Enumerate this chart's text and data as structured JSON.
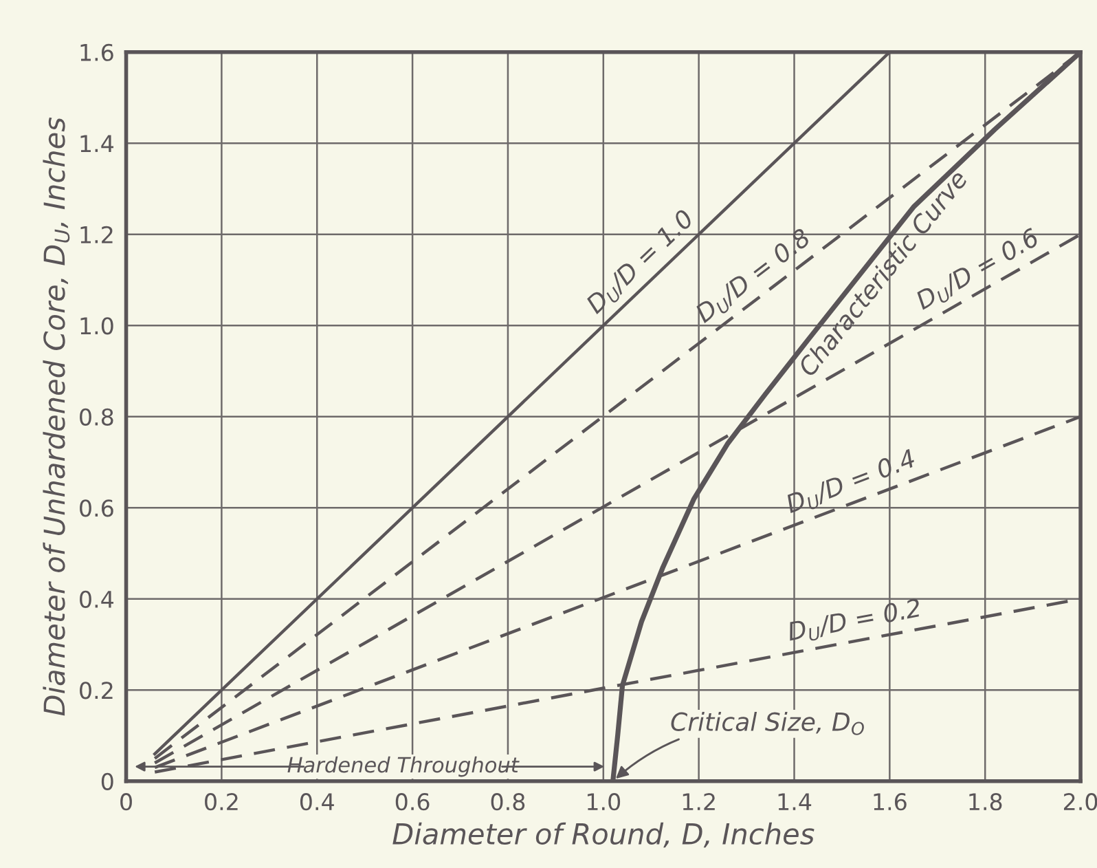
{
  "chart_data": {
    "type": "line",
    "xlabel": "Diameter of Round, D, Inches",
    "ylabel": "Diameter of Unhardened Core, D$_{U}$, Inches",
    "xlim": [
      0,
      2.0
    ],
    "ylim": [
      0,
      1.6
    ],
    "xticks": [
      0,
      0.2,
      0.4,
      0.6,
      0.8,
      {
        "value": 1,
        "label": "1.0"
      },
      1.2,
      1.4,
      1.6,
      1.8,
      {
        "value": 2,
        "label": "2.0"
      }
    ],
    "yticks": [
      0,
      0.2,
      0.4,
      0.6,
      0.8,
      {
        "value": 1,
        "label": "1.0"
      },
      1.2,
      1.4,
      1.6
    ],
    "grid": true,
    "marker": "none",
    "series": [
      {
        "name": "D$_{U}$/D = 1.0",
        "color": "#5a5558",
        "line_style": "solid",
        "x": [
          0.06,
          1.6
        ],
        "values": [
          0.06,
          1.6
        ]
      },
      {
        "name": "D$_{U}$/D = 0.8",
        "color": "#5a5558",
        "line_style": "dashed",
        "x": [
          0.06,
          2.0
        ],
        "values": [
          0.05,
          1.6
        ]
      },
      {
        "name": "D$_{U}$/D = 0.6",
        "color": "#5a5558",
        "line_style": "dashed",
        "x": [
          0.06,
          2.0
        ],
        "values": [
          0.04,
          1.2
        ]
      },
      {
        "name": "D$_{U}$/D = 0.4",
        "color": "#5a5558",
        "line_style": "dashed",
        "x": [
          0.06,
          2.0
        ],
        "values": [
          0.03,
          0.8
        ]
      },
      {
        "name": "D$_{U}$/D = 0.2",
        "color": "#5a5558",
        "line_style": "dashed",
        "x": [
          0.06,
          2.0
        ],
        "values": [
          0.02,
          0.4
        ]
      },
      {
        "name": "Characteristic Curve",
        "color": "#5a5558",
        "line_style": "solid",
        "x": [
          1.02,
          1.03,
          1.04,
          1.08,
          1.125,
          1.19,
          1.26,
          1.34,
          1.43,
          1.65,
          1.82,
          2.0
        ],
        "values": [
          0,
          0.1,
          0.21,
          0.35,
          0.47,
          0.62,
          0.74,
          0.85,
          0.97,
          1.26,
          1.43,
          1.6
        ]
      }
    ],
    "annotations": [
      "Hardened Throughout",
      {
        "text": "Critical Size, D$_{O}$",
        "x": 1.02,
        "y": 0
      }
    ]
  }
}
